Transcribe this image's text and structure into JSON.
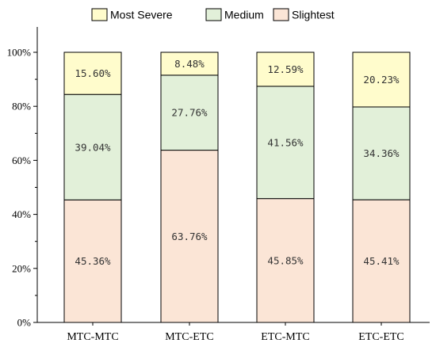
{
  "chart_data": {
    "type": "bar",
    "stacked": true,
    "categories": [
      "MTC-MTC",
      "MTC-ETC",
      "ETC-MTC",
      "ETC-ETC"
    ],
    "series": [
      {
        "name": "Slightest",
        "values": [
          45.36,
          63.76,
          45.85,
          45.41
        ],
        "labels": [
          "45.36%",
          "63.76%",
          "45.85%",
          "45.41%"
        ],
        "color": "#fbe5d6"
      },
      {
        "name": "Medium",
        "values": [
          39.04,
          27.76,
          41.56,
          34.36
        ],
        "labels": [
          "39.04%",
          "27.76%",
          "41.56%",
          "34.36%"
        ],
        "color": "#e2f0d9"
      },
      {
        "name": "Most Severe",
        "values": [
          15.6,
          8.48,
          12.59,
          20.23
        ],
        "labels": [
          "15.60%",
          "8.48%",
          "12.59%",
          "20.23%"
        ],
        "color": "#fffccc"
      }
    ],
    "legend_order": [
      "Most Severe",
      "Medium",
      "Slightest"
    ],
    "legend_position": "top",
    "ylim": [
      0,
      100
    ],
    "yticks": [
      0,
      20,
      40,
      60,
      80,
      100
    ],
    "ytick_labels": [
      "0%",
      "20%",
      "40%",
      "60%",
      "80%",
      "100%"
    ],
    "grid": false,
    "title": "",
    "xlabel": "",
    "ylabel": ""
  }
}
